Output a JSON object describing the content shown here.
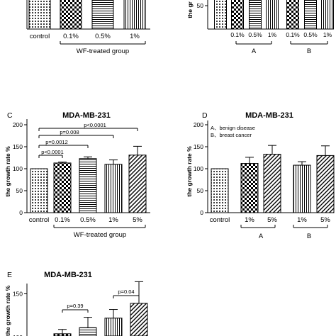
{
  "chart_data": [
    {
      "id": "top-left",
      "type": "bar",
      "categories": [
        "control",
        "0.1%",
        "0.5%",
        "1%"
      ],
      "values": [
        100,
        100,
        100,
        100
      ],
      "patterns": [
        "dots",
        "checker",
        "hlines",
        "vlines"
      ],
      "group_label": "WF-treated group",
      "ylim": [
        0,
        160
      ]
    },
    {
      "id": "top-right",
      "type": "bar",
      "ylabel": "the gr",
      "categories": [
        "control",
        "0.1%",
        "0.5%",
        "1%",
        "0.1%",
        "0.5%",
        "1%"
      ],
      "values": [
        100,
        100,
        100,
        100,
        100,
        100,
        100
      ],
      "patterns": [
        "dots",
        "checker",
        "hlines",
        "vlines",
        "checker",
        "hlines",
        "vlines"
      ],
      "tick": "50",
      "groups": [
        "A",
        "B"
      ],
      "ylim": [
        0,
        160
      ]
    },
    {
      "id": "C",
      "type": "bar",
      "panel": "C",
      "title": "MDA-MB-231",
      "ylabel": "the growth rate %",
      "categories": [
        "control",
        "0.1%",
        "0.5%",
        "1%",
        "5%"
      ],
      "values": [
        100,
        113,
        123,
        110,
        131
      ],
      "errors": [
        0,
        2,
        4,
        10,
        20
      ],
      "patterns": [
        "dots",
        "checker",
        "hlines",
        "vlines",
        "diag"
      ],
      "yticks": [
        "0",
        "50",
        "100",
        "150",
        "200"
      ],
      "ylim": [
        0,
        200
      ],
      "group_label": "WF-treated group",
      "pvalues": [
        "p<0.0001",
        "p=0.008",
        "p=0.0012",
        "p<0.0001"
      ]
    },
    {
      "id": "D",
      "type": "bar",
      "panel": "D",
      "title": "MDA-MB-231",
      "ylabel": "the growth rate %",
      "legend": [
        "A、benign disease",
        "B、breast cancer"
      ],
      "categories": [
        "control",
        "1%",
        "5%",
        "1%",
        "5%"
      ],
      "values": [
        100,
        112,
        133,
        108,
        130
      ],
      "errors": [
        0,
        14,
        20,
        8,
        22
      ],
      "patterns": [
        "dots",
        "checker",
        "diag",
        "vlines",
        "diag"
      ],
      "yticks": [
        "0",
        "50",
        "100",
        "150",
        "200"
      ],
      "ylim": [
        0,
        200
      ],
      "groups": [
        "A",
        "B"
      ]
    },
    {
      "id": "E",
      "type": "bar",
      "panel": "E",
      "title": "MDA-MB-231",
      "ylabel": "the growth rate %",
      "values": [
        100,
        104,
        111,
        122,
        139
      ],
      "errors": [
        0,
        5,
        12,
        10,
        25
      ],
      "patterns": [
        "dots",
        "checker",
        "hlines",
        "vlines",
        "diag"
      ],
      "yticks": [
        "100",
        "150"
      ],
      "ylim": [
        90,
        170
      ],
      "pvalues": [
        "p=0.39",
        "p=0.04"
      ]
    }
  ]
}
